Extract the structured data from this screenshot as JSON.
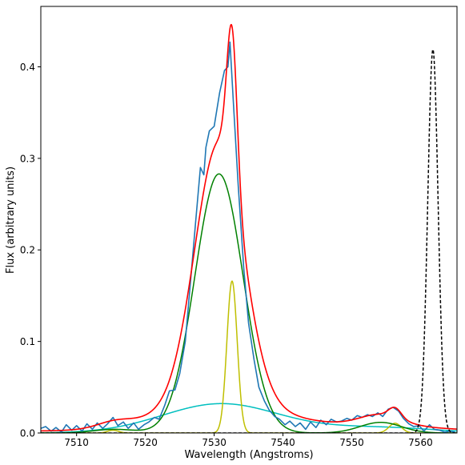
{
  "chart_data": {
    "type": "line",
    "title": "",
    "xlabel": "Wavelength (Angstroms)",
    "ylabel": "Flux (arbitrary units)",
    "xlim": [
      7504.8,
      7565.3
    ],
    "ylim": [
      0.0,
      0.466
    ],
    "xticks": [
      7510,
      7520,
      7530,
      7540,
      7550,
      7560
    ],
    "yticks": [
      0.0,
      0.1,
      0.2,
      0.3,
      0.4
    ],
    "ytick_labels": [
      "0.0",
      "0.1",
      "0.2",
      "0.3",
      "0.4"
    ],
    "grid": false,
    "legend": "none",
    "colors": {
      "observed": "#1f77b4",
      "total_fit": "#ff0000",
      "broad_component": "#008000",
      "narrow_components": "#bfbf00",
      "very_broad_component": "#00bfbf",
      "reference_line": "#000000"
    },
    "series": [
      {
        "role": "observed",
        "color": "#1f77b4",
        "style": "solid",
        "x": [
          7504.8,
          7505.5,
          7506.3,
          7507.0,
          7507.8,
          7508.5,
          7509.3,
          7510.0,
          7510.8,
          7511.5,
          7512.3,
          7513.0,
          7513.8,
          7514.5,
          7515.3,
          7516.0,
          7516.8,
          7517.5,
          7518.3,
          7519.0,
          7519.8,
          7520.5,
          7521.3,
          7522.0,
          7522.8,
          7523.5,
          7524.3,
          7525.0,
          7525.8,
          7526.5,
          7527.3,
          7528.0,
          7528.5,
          7528.8,
          7529.3,
          7530.0,
          7530.8,
          7531.5,
          7532.0,
          7532.3,
          7532.8,
          7533.5,
          7534.3,
          7535.0,
          7535.8,
          7536.5,
          7537.3,
          7538.0,
          7538.8,
          7539.5,
          7540.3,
          7541.0,
          7541.8,
          7542.5,
          7543.3,
          7544.0,
          7544.8,
          7545.5,
          7546.3,
          7547.0,
          7547.8,
          7548.5,
          7549.3,
          7550.0,
          7550.8,
          7551.5,
          7552.3,
          7553.0,
          7553.8,
          7554.5,
          7555.3,
          7556.0,
          7556.8,
          7557.5,
          7558.3,
          7559.0,
          7559.8,
          7560.5,
          7561.3,
          7562.0,
          7562.8,
          7563.5,
          7564.3,
          7565.0
        ],
        "y": [
          0.005,
          0.007,
          0.002,
          0.006,
          0.001,
          0.009,
          0.003,
          0.008,
          0.002,
          0.01,
          0.004,
          0.011,
          0.005,
          0.01,
          0.017,
          0.008,
          0.012,
          0.005,
          0.011,
          0.004,
          0.009,
          0.012,
          0.017,
          0.015,
          0.03,
          0.046,
          0.047,
          0.065,
          0.1,
          0.16,
          0.23,
          0.29,
          0.282,
          0.312,
          0.33,
          0.335,
          0.372,
          0.396,
          0.4,
          0.427,
          0.36,
          0.27,
          0.18,
          0.12,
          0.08,
          0.05,
          0.035,
          0.025,
          0.018,
          0.015,
          0.009,
          0.013,
          0.007,
          0.011,
          0.004,
          0.012,
          0.006,
          0.014,
          0.009,
          0.015,
          0.012,
          0.013,
          0.016,
          0.014,
          0.019,
          0.017,
          0.02,
          0.018,
          0.022,
          0.018,
          0.026,
          0.028,
          0.024,
          0.016,
          0.01,
          0.007,
          0.008,
          0.002,
          0.009,
          0.004,
          0.003,
          0.001,
          0.002,
          0.001
        ]
      },
      {
        "role": "total_fit",
        "color": "#ff0000",
        "style": "solid",
        "model": [
          {
            "amp": 0.283,
            "mu": 7530.7,
            "sigma": 3.5
          },
          {
            "amp": 0.166,
            "mu": 7532.6,
            "sigma": 0.75
          },
          {
            "amp": 0.032,
            "mu": 7531.0,
            "sigma": 8.5
          },
          {
            "amp": 0.0116,
            "mu": 7554.2,
            "sigma": 3.0
          },
          {
            "amp": 0.0106,
            "mu": 7556.3,
            "sigma": 0.9
          },
          {
            "amp": 0.006,
            "mu": 7554.0,
            "sigma": 8.0
          },
          {
            "amp": 0.006,
            "mu": 7515.5,
            "sigma": 2.5
          }
        ],
        "offset": 0.002
      },
      {
        "role": "broad_component",
        "color": "#008000",
        "style": "solid",
        "model": [
          {
            "amp": 0.283,
            "mu": 7530.7,
            "sigma": 3.5
          },
          {
            "amp": 0.0116,
            "mu": 7554.2,
            "sigma": 3.0
          },
          {
            "amp": 0.004,
            "mu": 7515.5,
            "sigma": 3.0
          }
        ],
        "offset": 0.0
      },
      {
        "role": "narrow_components",
        "color": "#bfbf00",
        "style": "solid",
        "model": [
          {
            "amp": 0.166,
            "mu": 7532.6,
            "sigma": 0.75
          },
          {
            "amp": 0.0106,
            "mu": 7556.3,
            "sigma": 0.9
          },
          {
            "amp": 0.003,
            "mu": 7515.3,
            "sigma": 0.8
          }
        ],
        "offset": 0.0
      },
      {
        "role": "very_broad_component",
        "color": "#00bfbf",
        "style": "solid",
        "model": [
          {
            "amp": 0.032,
            "mu": 7531.0,
            "sigma": 8.5
          },
          {
            "amp": 0.006,
            "mu": 7554.0,
            "sigma": 8.0
          }
        ],
        "offset": 0.0
      },
      {
        "role": "reference_line",
        "color": "#000000",
        "style": "dashed",
        "model": [
          {
            "amp": 0.419,
            "mu": 7561.8,
            "sigma": 0.75
          }
        ],
        "offset": 0.0
      }
    ]
  }
}
